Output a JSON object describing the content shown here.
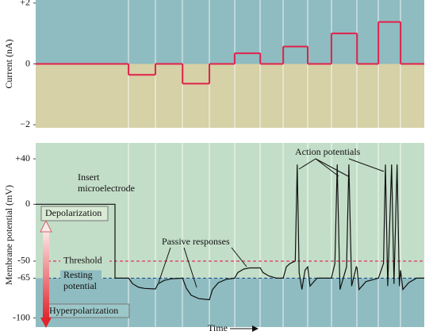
{
  "chart_data": [
    {
      "type": "line",
      "ylabel": "Current (nA)",
      "xlim": [
        0,
        100
      ],
      "ylim": [
        -2.1,
        2.1
      ],
      "yticks": [
        {
          "value": 2,
          "label": "+2"
        },
        0,
        {
          "value": -2,
          "label": "−2"
        }
      ],
      "step": true,
      "series": [
        {
          "color": "#e0214b",
          "x": [
            0,
            23.9,
            30.8,
            37.8,
            44.7,
            51.2,
            57.8,
            63.7,
            70,
            76.1,
            82.7,
            88.2,
            93.9
          ],
          "values": [
            0,
            -0.36,
            0,
            -0.65,
            0,
            0.35,
            0,
            0.57,
            0,
            1,
            0,
            1.38,
            0
          ]
        }
      ]
    },
    {
      "type": "line",
      "ylabel": "Membrane potential (mV)",
      "xlabel": "Time",
      "xlim": [
        0,
        100
      ],
      "ylim": [
        -108,
        54
      ],
      "yticks": [
        {
          "value": 40,
          "label": "+40"
        },
        0,
        -50,
        -65,
        -100
      ],
      "series": [
        {
          "color": "#111",
          "x": [
            0,
            20.4,
            20.4,
            23.9,
            25,
            26.5,
            28,
            30.8,
            31.5,
            33,
            35,
            37.8,
            38.8,
            40,
            42,
            44.7,
            45.5,
            47,
            49,
            51.2,
            52,
            53.5,
            55,
            57.8,
            58.5,
            60,
            62,
            63.7,
            64.5,
            65.5,
            66.8,
            67.3,
            67.8,
            68.5,
            69.3,
            70,
            70.6,
            72.4,
            76.1,
            77,
            77.6,
            78.3,
            80,
            80.6,
            81.3,
            82.5,
            82.7,
            83.2,
            85,
            88.2,
            89.5,
            90,
            90.6,
            91.6,
            92.2,
            93,
            93.6,
            93.9,
            94.5,
            96,
            98,
            100
          ],
          "values": [
            0,
            0,
            -65,
            -65,
            -70,
            -73,
            -74,
            -74.5,
            -70,
            -67,
            -65.5,
            -65,
            -74,
            -80,
            -83,
            -84,
            -75,
            -69,
            -66,
            -65,
            -60,
            -57,
            -56,
            -56,
            -60,
            -63,
            -65,
            -65,
            -55,
            -52,
            -50,
            35,
            -60,
            -75,
            -58,
            -55,
            -72,
            -65,
            -65,
            -52,
            35,
            -75,
            -55,
            35,
            -72,
            -55,
            -56,
            -75,
            -68,
            -65,
            -52,
            35,
            -72,
            35,
            -70,
            35,
            -72,
            -58,
            -75,
            -69,
            -65,
            -65
          ]
        }
      ],
      "reference_lines": [
        {
          "value": -50,
          "label": "Threshold",
          "color": "#e0214b"
        },
        {
          "value": -65,
          "label": [
            "Resting",
            "potential"
          ],
          "color": "#1f4f8f"
        }
      ],
      "annotations": {
        "insert": [
          "Insert",
          "microelectrode"
        ],
        "action": "Action potentials",
        "passive": "Passive responses",
        "depol": "Depolarization",
        "hyper": "Hyperpolarization"
      }
    }
  ]
}
